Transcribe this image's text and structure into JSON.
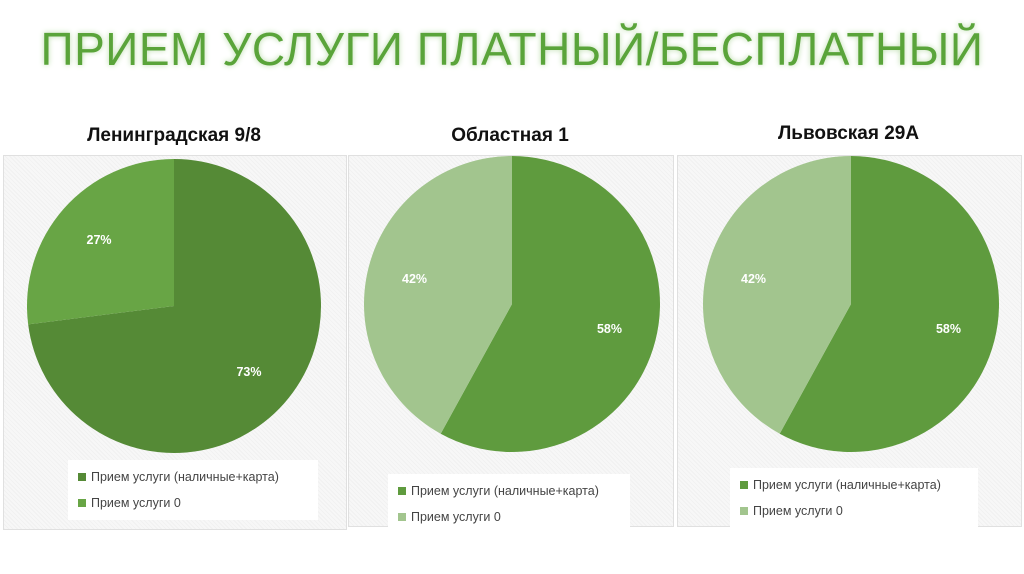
{
  "title": "ПРИЕМ УСЛУГИ ПЛАТНЫЙ/БЕСПЛАТНЫЙ",
  "chart_data": [
    {
      "type": "pie",
      "title": "Ленинградская 9/8",
      "categories": [
        "Прием услуги (наличные+карта)",
        "Прием услуги 0"
      ],
      "values": [
        73,
        27
      ],
      "labels": [
        "73%",
        "27%"
      ],
      "colors": [
        "#558a36",
        "#68a545"
      ],
      "legend": "bottom"
    },
    {
      "type": "pie",
      "title": "Областная 1",
      "categories": [
        "Прием услуги (наличные+карта)",
        "Прием услуги 0"
      ],
      "values": [
        58,
        42
      ],
      "labels": [
        "58%",
        "42%"
      ],
      "colors": [
        "#5f9b3e",
        "#a2c58e"
      ],
      "legend": "bottom"
    },
    {
      "type": "pie",
      "title": "Львовская 29А",
      "categories": [
        "Прием услуги (наличные+карта)",
        "Прием услуги 0"
      ],
      "values": [
        58,
        42
      ],
      "labels": [
        "58%",
        "42%"
      ],
      "colors": [
        "#5f9b3e",
        "#a2c58e"
      ],
      "legend": "bottom"
    }
  ]
}
